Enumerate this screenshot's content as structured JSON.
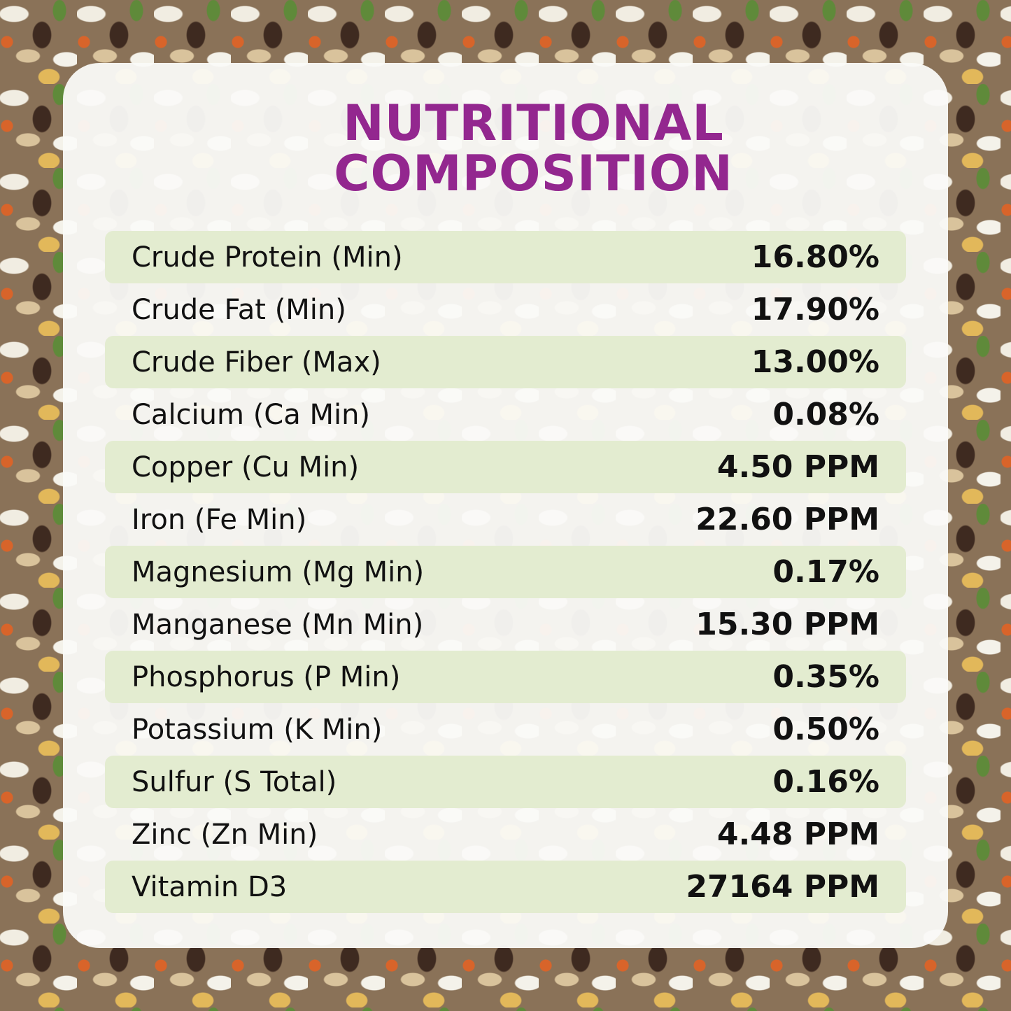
{
  "title": {
    "line1": "NUTRITIONAL",
    "line2": "COMPOSITION",
    "color": "#93278f"
  },
  "rows": [
    {
      "label": "Crude Protein (Min)",
      "value": "16.80%"
    },
    {
      "label": "Crude Fat (Min)",
      "value": "17.90%"
    },
    {
      "label": "Crude Fiber (Max)",
      "value": "13.00%"
    },
    {
      "label": "Calcium (Ca Min)",
      "value": "0.08%"
    },
    {
      "label": "Copper (Cu Min)",
      "value": "4.50 PPM"
    },
    {
      "label": "Iron (Fe Min)",
      "value": "22.60 PPM"
    },
    {
      "label": "Magnesium (Mg Min)",
      "value": "0.17%"
    },
    {
      "label": "Manganese (Mn Min)",
      "value": "15.30 PPM"
    },
    {
      "label": "Phosphorus (P Min)",
      "value": "0.35%"
    },
    {
      "label": "Potassium (K Min)",
      "value": "0.50%"
    },
    {
      "label": "Sulfur (S Total)",
      "value": "0.16%"
    },
    {
      "label": "Zinc (Zn Min)",
      "value": "4.48 PPM"
    },
    {
      "label": "Vitamin D3",
      "value": "27164 PPM"
    }
  ],
  "row_shade_color": "#e3ecd0"
}
